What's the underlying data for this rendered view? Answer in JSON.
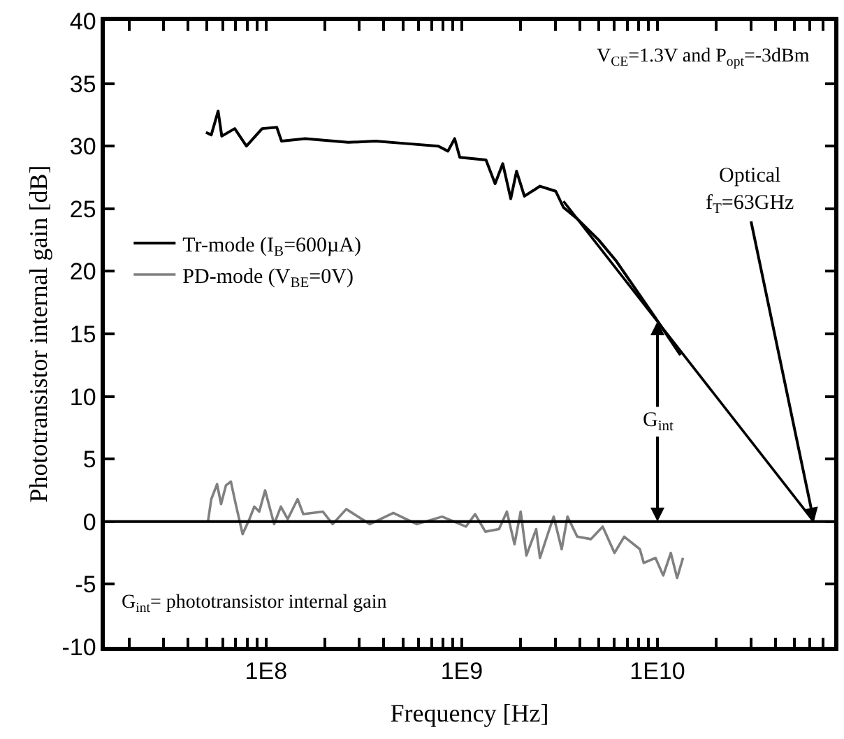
{
  "chart_data": {
    "type": "line",
    "xlabel": "Frequency [Hz]",
    "ylabel": "Phototransistor internal gain [dB]",
    "log": "x",
    "xlim": [
      15000000.0,
      80000000000.0
    ],
    "ylim": [
      -10,
      40
    ],
    "xticks": [
      {
        "value": 20000000.0,
        "label": null
      },
      {
        "value": 30000000.0,
        "label": null
      },
      {
        "value": 40000000.0,
        "label": null
      },
      {
        "value": 50000000.0,
        "label": null
      },
      {
        "value": 60000000.0,
        "label": null
      },
      {
        "value": 70000000.0,
        "label": null
      },
      {
        "value": 80000000.0,
        "label": null
      },
      {
        "value": 90000000.0,
        "label": null
      },
      {
        "value": 100000000.0,
        "label": "1E8"
      },
      {
        "value": 200000000.0,
        "label": null
      },
      {
        "value": 300000000.0,
        "label": null
      },
      {
        "value": 400000000.0,
        "label": null
      },
      {
        "value": 500000000.0,
        "label": null
      },
      {
        "value": 600000000.0,
        "label": null
      },
      {
        "value": 700000000.0,
        "label": null
      },
      {
        "value": 800000000.0,
        "label": null
      },
      {
        "value": 900000000.0,
        "label": null
      },
      {
        "value": 1000000000.0,
        "label": "1E9"
      },
      {
        "value": 2000000000.0,
        "label": null
      },
      {
        "value": 3000000000.0,
        "label": null
      },
      {
        "value": 4000000000.0,
        "label": null
      },
      {
        "value": 5000000000.0,
        "label": null
      },
      {
        "value": 6000000000.0,
        "label": null
      },
      {
        "value": 7000000000.0,
        "label": null
      },
      {
        "value": 8000000000.0,
        "label": null
      },
      {
        "value": 9000000000.0,
        "label": null
      },
      {
        "value": 10000000000.0,
        "label": "1E10"
      },
      {
        "value": 20000000000.0,
        "label": null
      },
      {
        "value": 30000000000.0,
        "label": null
      },
      {
        "value": 40000000000.0,
        "label": null
      },
      {
        "value": 50000000000.0,
        "label": null
      },
      {
        "value": 60000000000.0,
        "label": null
      },
      {
        "value": 70000000000.0,
        "label": null
      }
    ],
    "yticks": [
      -10,
      -5,
      0,
      5,
      10,
      15,
      20,
      25,
      30,
      35,
      40
    ],
    "legend": "left",
    "marker": "none",
    "line_style": "solid",
    "ref_lines": [
      {
        "axis": "y",
        "value": 0,
        "label": null,
        "color": "#000000"
      }
    ],
    "series": [
      {
        "name": "Tr-mode (I$_{B}$=600µA)",
        "color": "#000000",
        "x": [
          49300000.0,
          52500000.0,
          56900000.0,
          59400000.0,
          69200000.0,
          79400000.0,
          95500000.0,
          113500000.0,
          120000000.0,
          158500000.0,
          263000000.0,
          363000000.0,
          525000000.0,
          759000000.0,
          850000000.0,
          920000000.0,
          977000000.0,
          1330000000.0,
          1480000000.0,
          1620000000.0,
          1780000000.0,
          1905000000.0,
          2090000000.0,
          2510000000.0,
          3020000000.0,
          3310000000.0,
          3890000000.0,
          5010000000.0,
          6170000000.0,
          9840000000.0,
          13100000000.0
        ],
        "values": [
          31.1,
          30.9,
          32.8,
          30.8,
          31.4,
          30.0,
          31.4,
          31.5,
          30.4,
          30.6,
          30.3,
          30.4,
          30.2,
          30.0,
          29.6,
          30.6,
          29.1,
          28.9,
          27.0,
          28.6,
          25.8,
          28.0,
          26.0,
          26.8,
          26.4,
          25.1,
          24.2,
          22.5,
          20.8,
          16.2,
          13.3
        ]
      },
      {
        "name": "PD-mode (V$_{BE}$=0V)",
        "color": "#808080",
        "x": [
          50500000.0,
          52500000.0,
          56200000.0,
          58900000.0,
          62400000.0,
          66100000.0,
          70000000.0,
          75900000.0,
          82200000.0,
          87100000.0,
          92300000.0,
          98900000.0,
          110000000.0,
          119000000.0,
          129000000.0,
          145000000.0,
          155000000.0,
          195000000.0,
          219000000.0,
          257000000.0,
          339000000.0,
          447000000.0,
          589000000.0,
          794000000.0,
          1050000000.0,
          1170000000.0,
          1320000000.0,
          1550000000.0,
          1700000000.0,
          1860000000.0,
          2000000000.0,
          2140000000.0,
          2400000000.0,
          2510000000.0,
          2750000000.0,
          2950000000.0,
          3240000000.0,
          3470000000.0,
          3890000000.0,
          4570000000.0,
          5250000000.0,
          6030000000.0,
          6760000000.0,
          8130000000.0,
          8510000000.0,
          9770000000.0,
          10700000000.0,
          11700000000.0,
          12600000000.0,
          13500000000.0
        ],
        "values": [
          0,
          1.8,
          3.0,
          1.4,
          2.9,
          3.2,
          1.4,
          -1.0,
          0.2,
          1.2,
          0.8,
          2.5,
          -0.2,
          1.2,
          0.2,
          1.8,
          0.6,
          0.8,
          -0.2,
          1.0,
          -0.2,
          0.7,
          -0.2,
          0.4,
          -0.4,
          0.6,
          -0.8,
          -0.6,
          0.8,
          -1.8,
          0.8,
          -2.7,
          -0.6,
          -2.9,
          -1.0,
          0.4,
          -2.2,
          0.4,
          -1.2,
          -1.4,
          -0.4,
          -2.5,
          -1.2,
          -2.2,
          -3.3,
          -2.9,
          -4.3,
          -2.5,
          -4.5,
          -2.9
        ]
      },
      {
        "color": "#000000",
        "x": [
          3310000000.0,
          63000000000.0
        ],
        "values": [
          25.6,
          0
        ]
      }
    ],
    "annotations": [
      "V$_{CE}$=1.3V and P$_{opt}$=-3dBm",
      {
        "text": "G$_{int}$",
        "x": 10000000000.0,
        "y": 16
      },
      {
        "text": "Optical\nf$_{T}$=63GHz",
        "x": 63000000000.0,
        "y": 0
      },
      "G$_{int}$= phototransistor internal gain"
    ]
  }
}
